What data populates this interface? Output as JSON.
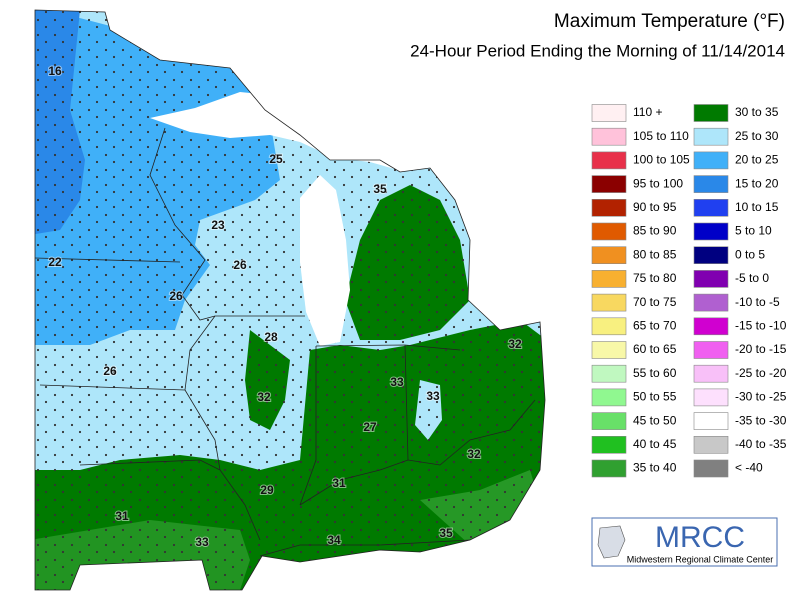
{
  "header": {
    "title": "Maximum Temperature (°F)",
    "subtitle": "24-Hour Period Ending the Morning of 11/14/2014"
  },
  "legend": [
    {
      "label": "110 +",
      "color": "#fff0f2"
    },
    {
      "label": "105 to 110",
      "color": "#ffc2da"
    },
    {
      "label": "100 to 105",
      "color": "#e8304a"
    },
    {
      "label": "95 to 100",
      "color": "#8b0000"
    },
    {
      "label": "90 to 95",
      "color": "#b22200"
    },
    {
      "label": "85 to 90",
      "color": "#e05a00"
    },
    {
      "label": "80 to 85",
      "color": "#f09020"
    },
    {
      "label": "75 to 80",
      "color": "#f8b030"
    },
    {
      "label": "70 to 75",
      "color": "#f8d860"
    },
    {
      "label": "65 to 70",
      "color": "#f8f080"
    },
    {
      "label": "60 to 65",
      "color": "#f8f8a8"
    },
    {
      "label": "55 to 60",
      "color": "#c0f8c0"
    },
    {
      "label": "50 to 55",
      "color": "#90f890"
    },
    {
      "label": "45 to 50",
      "color": "#68e068"
    },
    {
      "label": "40 to 45",
      "color": "#20c020"
    },
    {
      "label": "35 to 40",
      "color": "#30a030"
    },
    {
      "label": "30 to 35",
      "color": "#007a00"
    },
    {
      "label": "25 to 30",
      "color": "#aee6fa"
    },
    {
      "label": "20 to 25",
      "color": "#40b0f8"
    },
    {
      "label": "15 to 20",
      "color": "#2a88e8"
    },
    {
      "label": "10 to 15",
      "color": "#2040f0"
    },
    {
      "label": "5 to 10",
      "color": "#0000c8"
    },
    {
      "label": "0 to 5",
      "color": "#000080"
    },
    {
      "label": "-5 to 0",
      "color": "#8000b0"
    },
    {
      "label": "-10 to -5",
      "color": "#b060d0"
    },
    {
      "label": "-15 to -10",
      "color": "#d000d0"
    },
    {
      "label": "-20 to -15",
      "color": "#f060f0"
    },
    {
      "label": "-25 to -20",
      "color": "#f8c0f8"
    },
    {
      "label": "-30 to -25",
      "color": "#fde0fd"
    },
    {
      "label": "-35 to -30",
      "color": "#ffffff"
    },
    {
      "label": "-40 to -35",
      "color": "#c8c8c8"
    },
    {
      "label": "< -40",
      "color": "#808080"
    }
  ],
  "station_labels": [
    16,
    25,
    35,
    23,
    22,
    26,
    26,
    28,
    26,
    32,
    33,
    33,
    32,
    27,
    32,
    29,
    31,
    31,
    33,
    34,
    35
  ],
  "logo": {
    "name": "MRCC",
    "caption": "Midwestern Regional Climate Center"
  }
}
